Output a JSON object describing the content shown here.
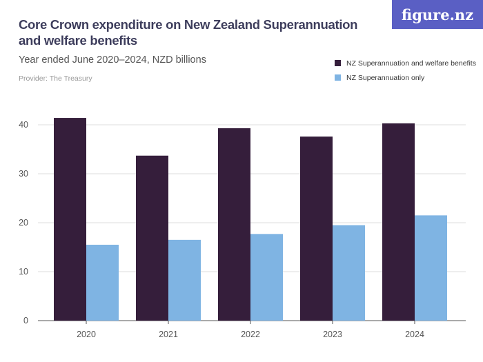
{
  "header": {
    "title": "Core Crown expenditure on New Zealand Superannuation and welfare benefits",
    "subtitle": "Year ended June 2020–2024, NZD billions",
    "provider": "Provider: The Treasury",
    "logo": "figure.nz"
  },
  "chart_data": {
    "type": "bar",
    "title": "Core Crown expenditure on New Zealand Superannuation and welfare benefits",
    "subtitle": "Year ended June 2020–2024, NZD billions",
    "categories": [
      "2020",
      "2021",
      "2022",
      "2023",
      "2024"
    ],
    "series": [
      {
        "name": "NZ Superannuation and welfare benefits",
        "color": "#351e3b",
        "values": [
          41.4,
          33.7,
          39.3,
          37.6,
          40.3
        ]
      },
      {
        "name": "NZ Superannuation only",
        "color": "#7fb4e3",
        "values": [
          15.5,
          16.5,
          17.7,
          19.5,
          21.5
        ]
      }
    ],
    "yticks": [
      0,
      10,
      20,
      30,
      40
    ],
    "ylim": [
      0,
      45
    ],
    "grid": true,
    "legend": "top-right"
  }
}
